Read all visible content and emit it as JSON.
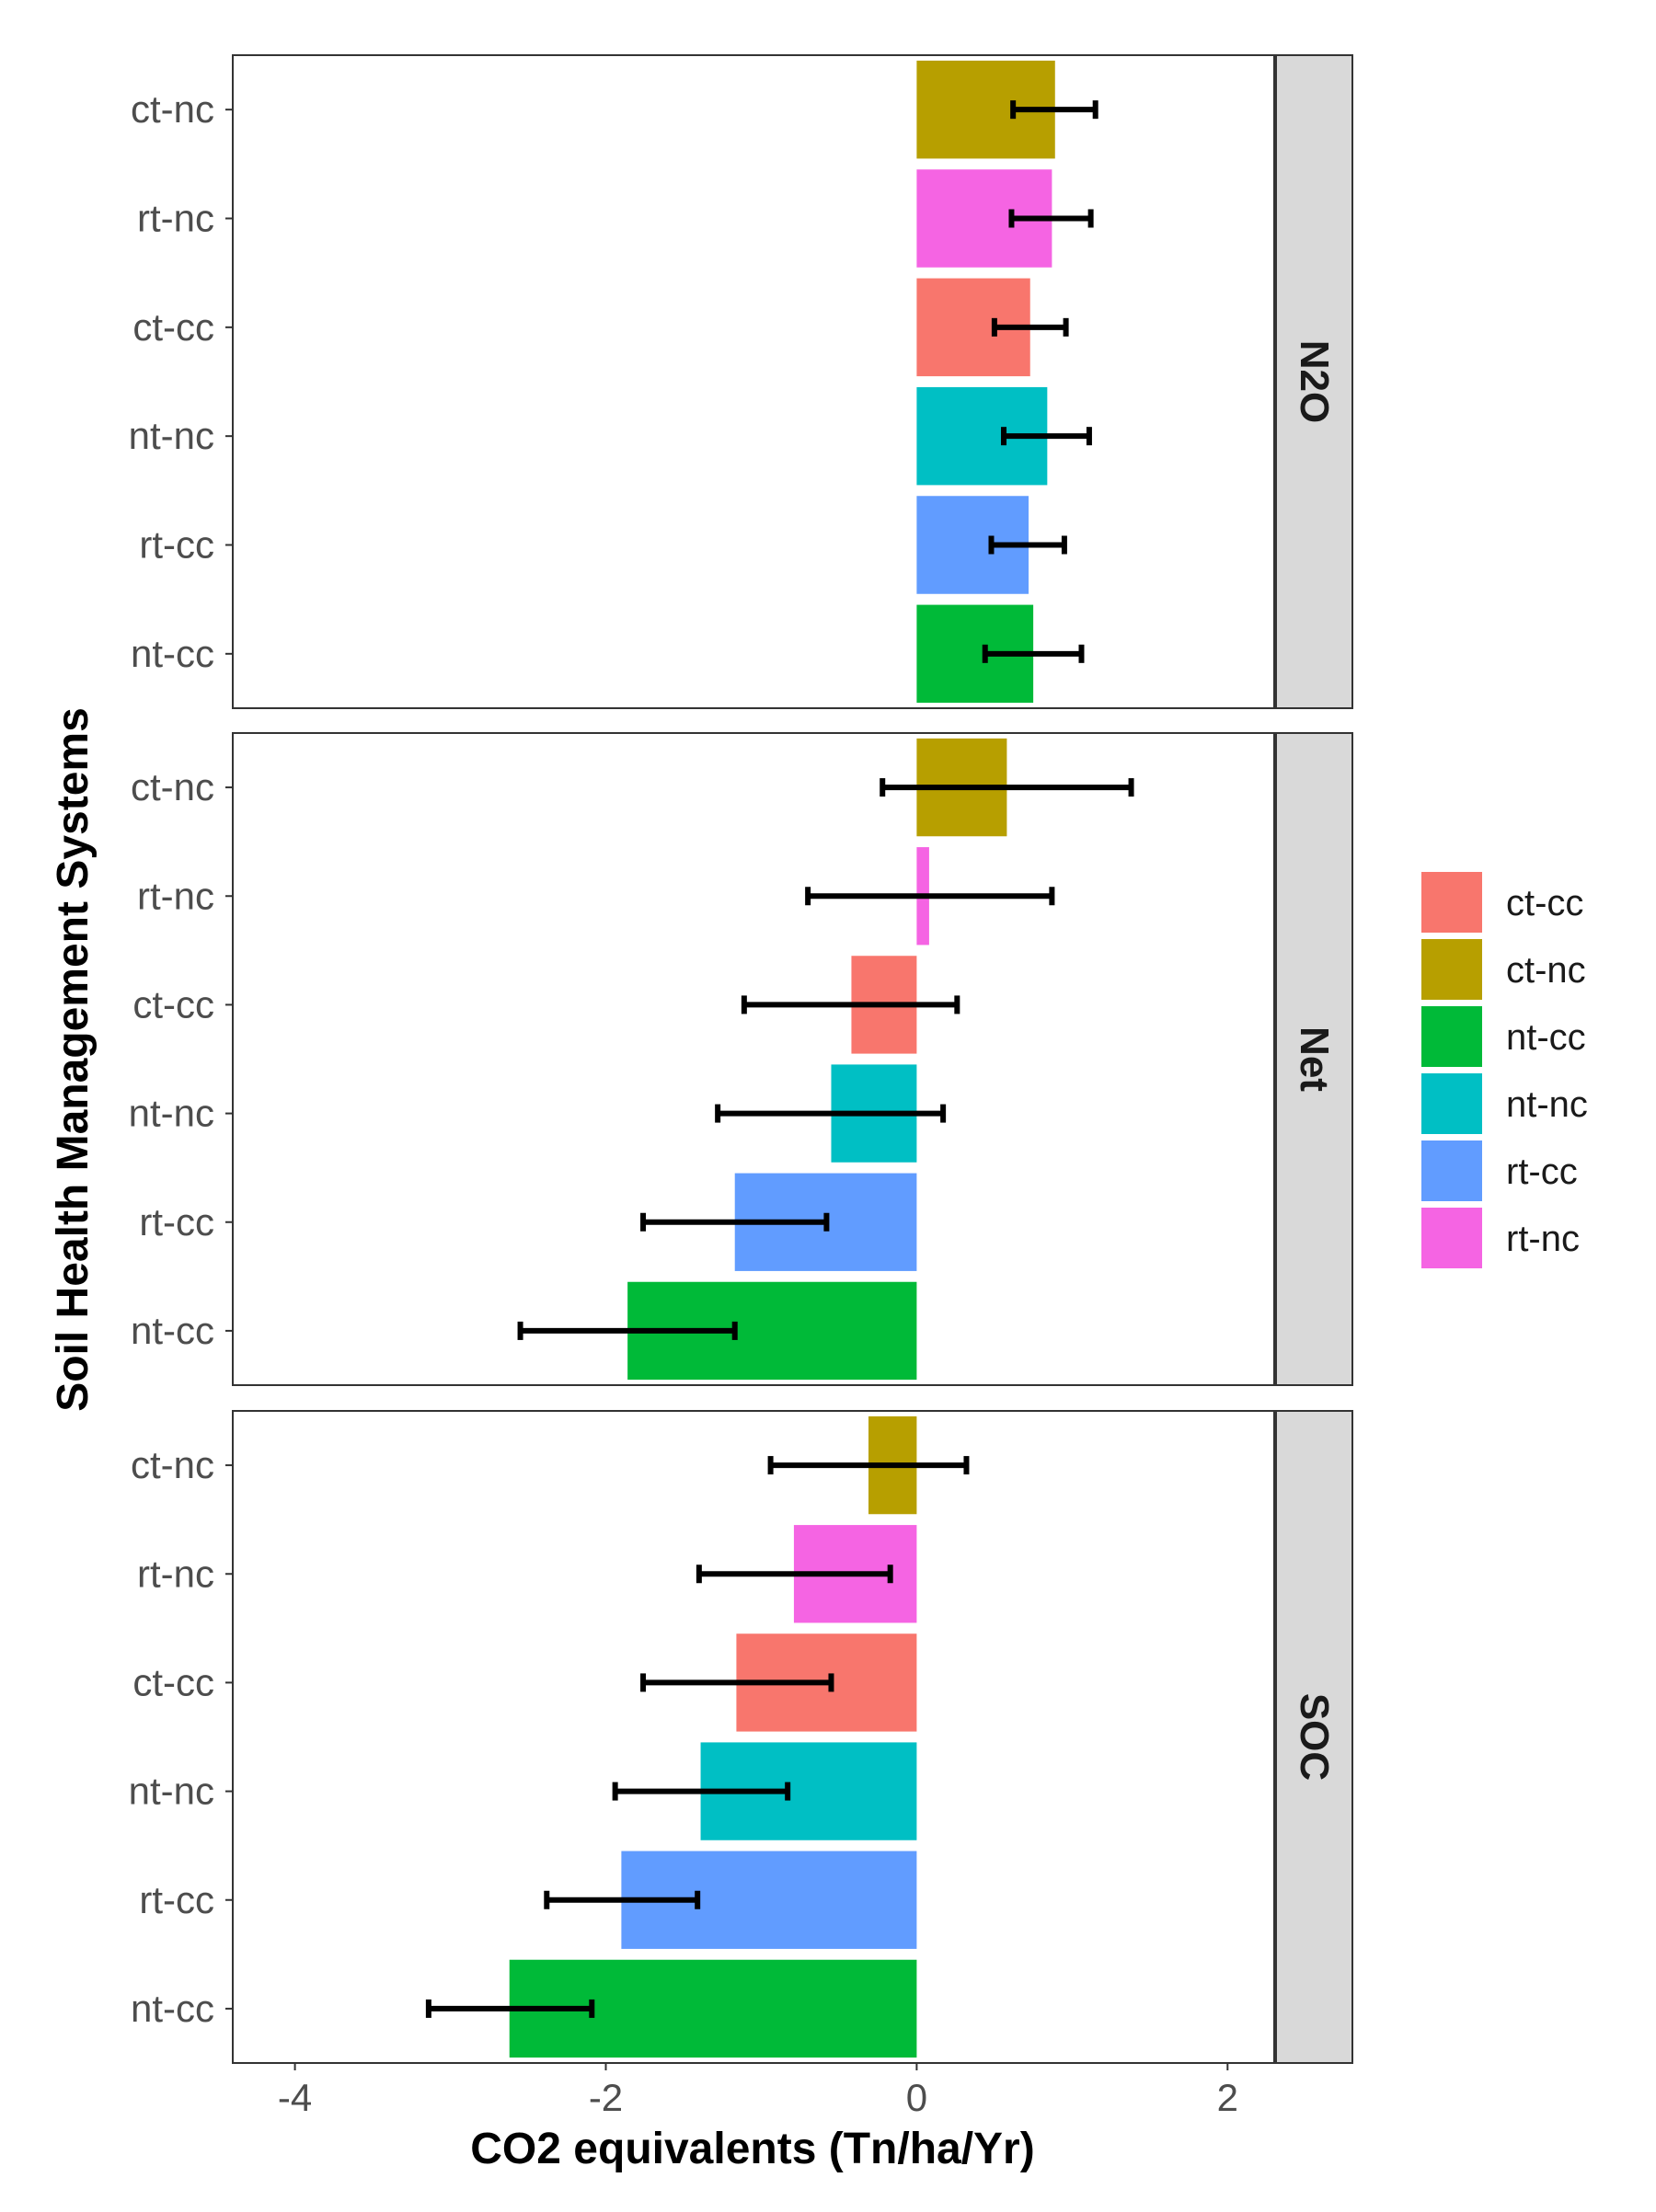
{
  "chart_data": {
    "type": "bar",
    "orientation": "horizontal",
    "xlabel": "CO2 equivalents (Tn/ha/Yr)",
    "ylabel": "Soil Health Management Systems",
    "xlim": [
      -4.4,
      2.3
    ],
    "x_ticks": [
      -4,
      -2,
      0,
      2
    ],
    "x_tick_labels": [
      "-4",
      "-2",
      "0",
      "2"
    ],
    "categories": [
      "ct-nc",
      "rt-nc",
      "ct-cc",
      "nt-nc",
      "rt-cc",
      "nt-cc"
    ],
    "grid": false,
    "legend_position": "right",
    "legend": [
      {
        "label": "ct-cc",
        "color": "#F8766D"
      },
      {
        "label": "ct-nc",
        "color": "#B79F00"
      },
      {
        "label": "nt-cc",
        "color": "#00BA38"
      },
      {
        "label": "nt-nc",
        "color": "#00BFC4"
      },
      {
        "label": "rt-cc",
        "color": "#619CFF"
      },
      {
        "label": "rt-nc",
        "color": "#F564E3"
      }
    ],
    "facets": [
      {
        "label": "N2O",
        "bars": [
          {
            "category": "ct-nc",
            "value": 0.89,
            "err_low": 0.62,
            "err_high": 1.15
          },
          {
            "category": "rt-nc",
            "value": 0.87,
            "err_low": 0.61,
            "err_high": 1.12
          },
          {
            "category": "ct-cc",
            "value": 0.73,
            "err_low": 0.5,
            "err_high": 0.96
          },
          {
            "category": "nt-nc",
            "value": 0.84,
            "err_low": 0.56,
            "err_high": 1.11
          },
          {
            "category": "rt-cc",
            "value": 0.72,
            "err_low": 0.48,
            "err_high": 0.95
          },
          {
            "category": "nt-cc",
            "value": 0.75,
            "err_low": 0.44,
            "err_high": 1.06
          }
        ]
      },
      {
        "label": "Net",
        "bars": [
          {
            "category": "ct-nc",
            "value": 0.58,
            "err_low": -0.22,
            "err_high": 1.38
          },
          {
            "category": "rt-nc",
            "value": 0.08,
            "err_low": -0.7,
            "err_high": 0.87
          },
          {
            "category": "ct-cc",
            "value": -0.42,
            "err_low": -1.11,
            "err_high": 0.26
          },
          {
            "category": "nt-nc",
            "value": -0.55,
            "err_low": -1.28,
            "err_high": 0.17
          },
          {
            "category": "rt-cc",
            "value": -1.17,
            "err_low": -1.76,
            "err_high": -0.58
          },
          {
            "category": "nt-cc",
            "value": -1.86,
            "err_low": -2.55,
            "err_high": -1.17
          }
        ]
      },
      {
        "label": "SOC",
        "bars": [
          {
            "category": "ct-nc",
            "value": -0.31,
            "err_low": -0.94,
            "err_high": 0.32
          },
          {
            "category": "rt-nc",
            "value": -0.79,
            "err_low": -1.4,
            "err_high": -0.17
          },
          {
            "category": "ct-cc",
            "value": -1.16,
            "err_low": -1.76,
            "err_high": -0.55
          },
          {
            "category": "nt-nc",
            "value": -1.39,
            "err_low": -1.94,
            "err_high": -0.83
          },
          {
            "category": "rt-cc",
            "value": -1.9,
            "err_low": -2.38,
            "err_high": -1.41
          },
          {
            "category": "nt-cc",
            "value": -2.62,
            "err_low": -3.14,
            "err_high": -2.09
          }
        ]
      }
    ]
  }
}
